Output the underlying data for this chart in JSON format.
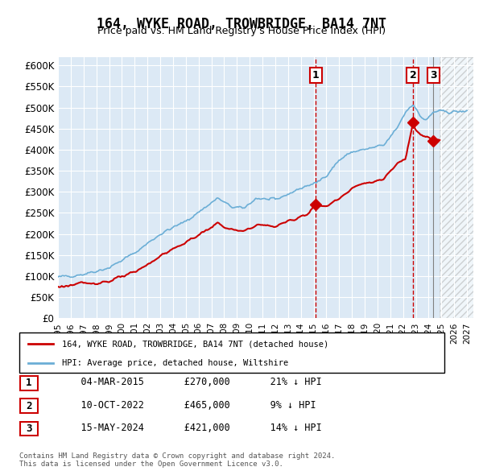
{
  "title": "164, WYKE ROAD, TROWBRIDGE, BA14 7NT",
  "subtitle": "Price paid vs. HM Land Registry's House Price Index (HPI)",
  "xlabel": "",
  "ylabel": "",
  "ylim": [
    0,
    620000
  ],
  "yticks": [
    0,
    50000,
    100000,
    150000,
    200000,
    250000,
    300000,
    350000,
    400000,
    450000,
    500000,
    550000,
    600000
  ],
  "ytick_labels": [
    "£0",
    "£50K",
    "£100K",
    "£150K",
    "£200K",
    "£250K",
    "£300K",
    "£350K",
    "£400K",
    "£450K",
    "£500K",
    "£550K",
    "£600K"
  ],
  "xlim_start": 1995.0,
  "xlim_end": 2027.5,
  "xtick_years": [
    1995,
    1996,
    1997,
    1998,
    1999,
    2000,
    2001,
    2002,
    2003,
    2004,
    2005,
    2006,
    2007,
    2008,
    2009,
    2010,
    2011,
    2012,
    2013,
    2014,
    2015,
    2016,
    2017,
    2018,
    2019,
    2020,
    2021,
    2022,
    2023,
    2024,
    2025,
    2026,
    2027
  ],
  "hpi_color": "#6baed6",
  "property_color": "#cc0000",
  "bg_color": "#dce9f5",
  "grid_color": "#ffffff",
  "transaction1_date": 2015.17,
  "transaction1_price": 270000,
  "transaction2_date": 2022.77,
  "transaction2_price": 465000,
  "transaction3_date": 2024.37,
  "transaction3_price": 421000,
  "legend_label1": "164, WYKE ROAD, TROWBRIDGE, BA14 7NT (detached house)",
  "legend_label2": "HPI: Average price, detached house, Wiltshire",
  "table_rows": [
    [
      "1",
      "04-MAR-2015",
      "£270,000",
      "21% ↓ HPI"
    ],
    [
      "2",
      "10-OCT-2022",
      "£465,000",
      "9% ↓ HPI"
    ],
    [
      "3",
      "15-MAY-2024",
      "£421,000",
      "14% ↓ HPI"
    ]
  ],
  "footnote": "Contains HM Land Registry data © Crown copyright and database right 2024.\nThis data is licensed under the Open Government Licence v3.0.",
  "future_shade_start": 2024.87,
  "hatch_pattern": "////"
}
